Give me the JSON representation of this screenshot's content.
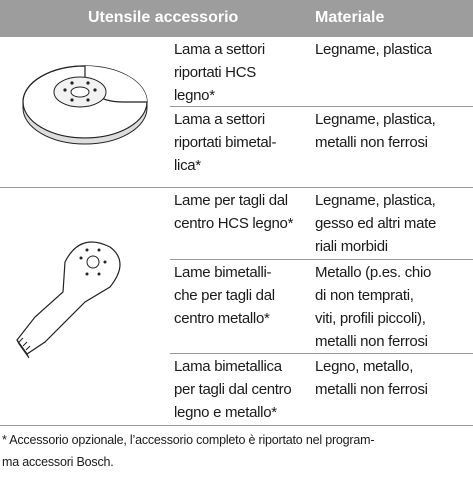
{
  "table": {
    "header": {
      "accessory": "Utensile accessorio",
      "material": "Materiale"
    },
    "rows": [
      {
        "accessory": [
          "Lama a settori",
          "riportati  HCS",
          "legno*"
        ],
        "material": [
          "Legname, plastica"
        ]
      },
      {
        "accessory": [
          "Lama a settori",
          "riportati bimetal-",
          "lica*"
        ],
        "material": [
          "Legname, plastica,",
          "metalli non ferrosi"
        ]
      },
      {
        "accessory": [
          "Lame per tagli dal",
          "centro HCS legno*"
        ],
        "material": [
          "Legname, plastica,",
          "gesso ed altri mate",
          "riali morbidi"
        ]
      },
      {
        "accessory": [
          "Lame bimetalli-",
          "che per tagli dal",
          "centro metallo*"
        ],
        "material": [
          "Metallo (p.es. chio",
          "di non temprati,",
          "viti, profili piccoli),",
          "metalli non ferrosi"
        ]
      },
      {
        "accessory": [
          "Lama bimetallica",
          "per tagli dal centro",
          "legno e metallo*"
        ],
        "material": [
          "Legno, metallo,",
          "metalli non ferrosi"
        ]
      }
    ],
    "footnote": [
      "* Accessorio opzionale, l’accessorio completo è riportato nel program-",
      "ma accessori Bosch."
    ]
  }
}
